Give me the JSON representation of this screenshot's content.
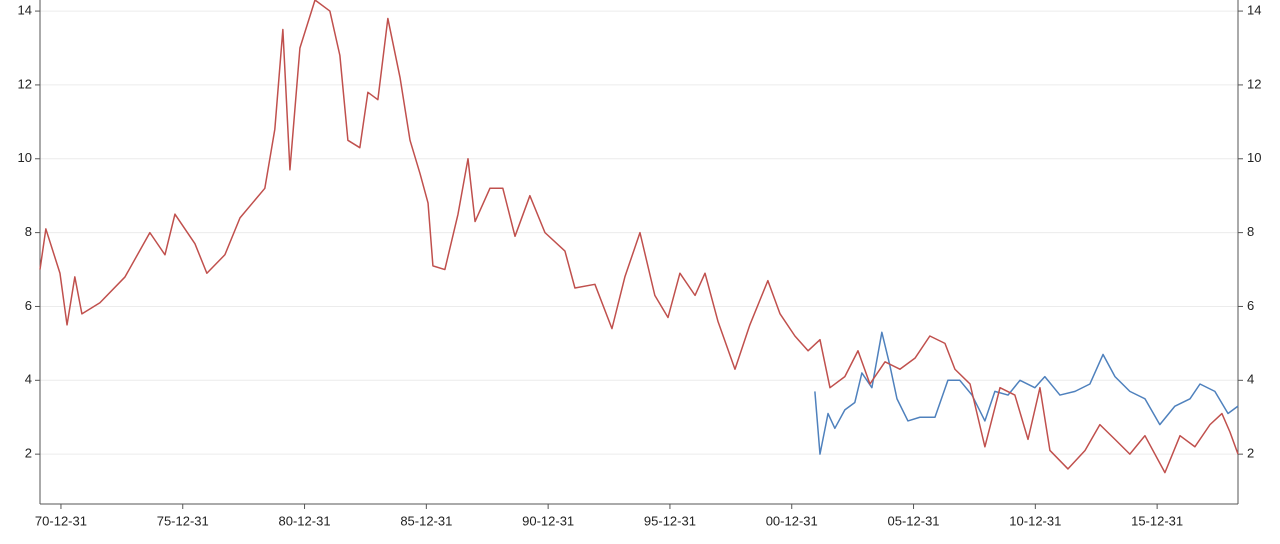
{
  "chart_data": {
    "type": "line",
    "series": [
      {
        "color": "#c0504d",
        "x": [
          1970.13,
          1970.37,
          1970.95,
          1971.24,
          1971.56,
          1971.85,
          1972.59,
          1973.62,
          1974.64,
          1975.26,
          1975.67,
          1976.49,
          1976.98,
          1977.72,
          1978.34,
          1979.36,
          1979.77,
          1980.1,
          1980.39,
          1980.8,
          1981.42,
          1982.03,
          1982.44,
          1982.77,
          1983.26,
          1983.59,
          1984.0,
          1984.41,
          1984.91,
          1985.32,
          1985.73,
          1986.06,
          1986.26,
          1986.75,
          1987.29,
          1987.7,
          1987.99,
          1988.6,
          1989.13,
          1989.63,
          1990.24,
          1990.86,
          1991.68,
          1992.09,
          1992.91,
          1993.61,
          1994.14,
          1994.76,
          1995.37,
          1995.91,
          1996.4,
          1997.02,
          1997.43,
          1997.96,
          1998.66,
          1999.27,
          2000.01,
          2000.51,
          2001.12,
          2001.66,
          2002.15,
          2002.56,
          2003.17,
          2003.71,
          2004.2,
          2004.82,
          2005.43,
          2006.05,
          2006.66,
          2007.28,
          2007.69,
          2008.31,
          2008.92,
          2009.54,
          2010.15,
          2010.69,
          2011.18,
          2011.59,
          2012.33,
          2013.03,
          2013.64,
          2014.26,
          2014.87,
          2015.49,
          2016.31,
          2016.93,
          2017.54,
          2018.16,
          2018.65,
          2018.98,
          2019.31
        ],
        "values": [
          7.0,
          8.1,
          6.9,
          5.5,
          6.8,
          5.8,
          6.1,
          6.8,
          8.0,
          7.4,
          8.5,
          7.7,
          6.9,
          7.4,
          8.4,
          9.2,
          10.8,
          13.5,
          9.7,
          13.0,
          14.3,
          14.0,
          12.8,
          10.5,
          10.3,
          11.8,
          11.6,
          13.8,
          12.2,
          10.5,
          9.6,
          8.8,
          7.1,
          7.0,
          8.5,
          10.0,
          8.3,
          9.2,
          9.2,
          7.9,
          9.0,
          8.0,
          7.5,
          6.5,
          6.6,
          5.4,
          6.8,
          8.0,
          6.3,
          5.7,
          6.9,
          6.3,
          6.9,
          5.6,
          4.3,
          5.5,
          6.7,
          5.8,
          5.2,
          4.8,
          5.1,
          3.8,
          4.1,
          4.8,
          3.9,
          4.5,
          4.3,
          4.6,
          5.2,
          5.0,
          4.3,
          3.9,
          2.2,
          3.8,
          3.6,
          2.4,
          3.8,
          2.1,
          1.6,
          2.1,
          2.8,
          2.4,
          2.0,
          2.5,
          1.5,
          2.5,
          2.2,
          2.8,
          3.1,
          2.6,
          2.0
        ]
      },
      {
        "color": "#4f81bd",
        "x": [
          2001.94,
          2002.15,
          2002.48,
          2002.76,
          2003.17,
          2003.58,
          2003.87,
          2004.28,
          2004.69,
          2005.02,
          2005.31,
          2005.76,
          2006.25,
          2006.87,
          2007.4,
          2007.89,
          2008.39,
          2008.92,
          2009.33,
          2009.87,
          2010.36,
          2010.97,
          2011.38,
          2012.0,
          2012.62,
          2013.23,
          2013.77,
          2014.26,
          2014.87,
          2015.49,
          2016.1,
          2016.72,
          2017.34,
          2017.75,
          2018.36,
          2018.9,
          2019.31
        ],
        "values": [
          3.7,
          2.0,
          3.1,
          2.7,
          3.2,
          3.4,
          4.2,
          3.8,
          5.3,
          4.4,
          3.5,
          2.9,
          3.0,
          3.0,
          4.0,
          4.0,
          3.6,
          2.9,
          3.7,
          3.6,
          4.0,
          3.8,
          4.1,
          3.6,
          3.7,
          3.9,
          4.7,
          4.1,
          3.7,
          3.5,
          2.8,
          3.3,
          3.5,
          3.9,
          3.7,
          3.1,
          3.3
        ]
      }
    ],
    "xlim": [
      1970.13,
      2019.31
    ],
    "xticks": [
      {
        "value": 1970.99,
        "label": "70-12-31"
      },
      {
        "value": 1975.99,
        "label": "75-12-31"
      },
      {
        "value": 1980.99,
        "label": "80-12-31"
      },
      {
        "value": 1985.99,
        "label": "85-12-31"
      },
      {
        "value": 1990.99,
        "label": "90-12-31"
      },
      {
        "value": 1995.99,
        "label": "95-12-31"
      },
      {
        "value": 2000.99,
        "label": "00-12-31"
      },
      {
        "value": 2005.99,
        "label": "05-12-31"
      },
      {
        "value": 2010.99,
        "label": "10-12-31"
      },
      {
        "value": 2015.99,
        "label": "15-12-31"
      }
    ],
    "ylim": [
      0.65,
      14.3
    ],
    "yticks": [
      2,
      4,
      6,
      8,
      10,
      12,
      14
    ],
    "y2lim": [
      0.65,
      14.3
    ],
    "y2ticks": [
      2,
      4,
      6,
      8,
      10,
      12,
      14
    ],
    "grid": true
  }
}
